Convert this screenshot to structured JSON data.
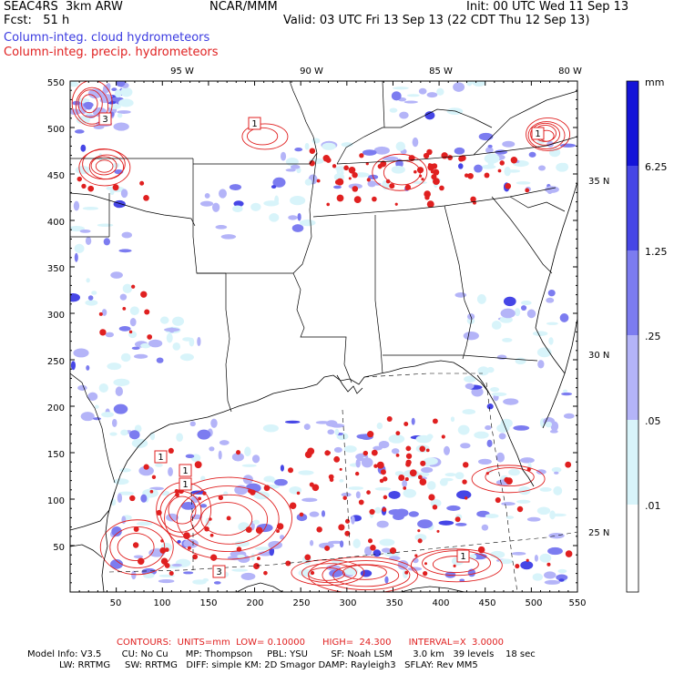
{
  "header": {
    "model": "SEAC4RS  3km ARW",
    "org": "NCAR/MMM",
    "init": "Init: 00 UTC Wed 11 Sep 13",
    "fcst": "Fcst:   51 h",
    "valid": "Valid: 03 UTC Fri 13 Sep 13 (22 CDT Thu 12 Sep 13)",
    "field1": "Column-integ. cloud hydrometeors",
    "field2": "Column-integ. precip. hydrometeors"
  },
  "axes": {
    "x_ticks": [
      "50",
      "100",
      "150",
      "200",
      "250",
      "300",
      "350",
      "400",
      "450",
      "500",
      "550"
    ],
    "y_ticks": [
      "50",
      "100",
      "150",
      "200",
      "250",
      "300",
      "350",
      "400",
      "450",
      "500",
      "550"
    ],
    "lon_labels": [
      "95 W",
      "90 W",
      "85 W",
      "80 W"
    ],
    "lat_labels": [
      "35 N",
      "30 N",
      "25 N"
    ]
  },
  "legend": {
    "unit": "mm",
    "levels": [
      "6.25",
      "1.25",
      ".25",
      ".05",
      ".01"
    ],
    "colors": [
      "#1414d8",
      "#4646e6",
      "#7c7cf0",
      "#b4b4f8",
      "#d8f4fa",
      "#ffffff"
    ]
  },
  "contour_labels": [
    "1",
    "1",
    "1",
    "1",
    "1",
    "3",
    "1",
    "3"
  ],
  "footer": {
    "contours": "CONTOURS:  UNITS=mm  LOW= 0.10000      HIGH=  24.300      INTERVAL=X  3.0000",
    "line1": "Model Info: V3.5       CU: No Cu      MP: Thompson     PBL: YSU        SF: Noah LSM       3.0 km   39 levels    18 sec",
    "line2": "           LW: RRTMG     SW: RRTMG   DIFF: simple KM: 2D Smagor DAMP: Rayleigh3   SFLAY: Rev MM5"
  }
}
